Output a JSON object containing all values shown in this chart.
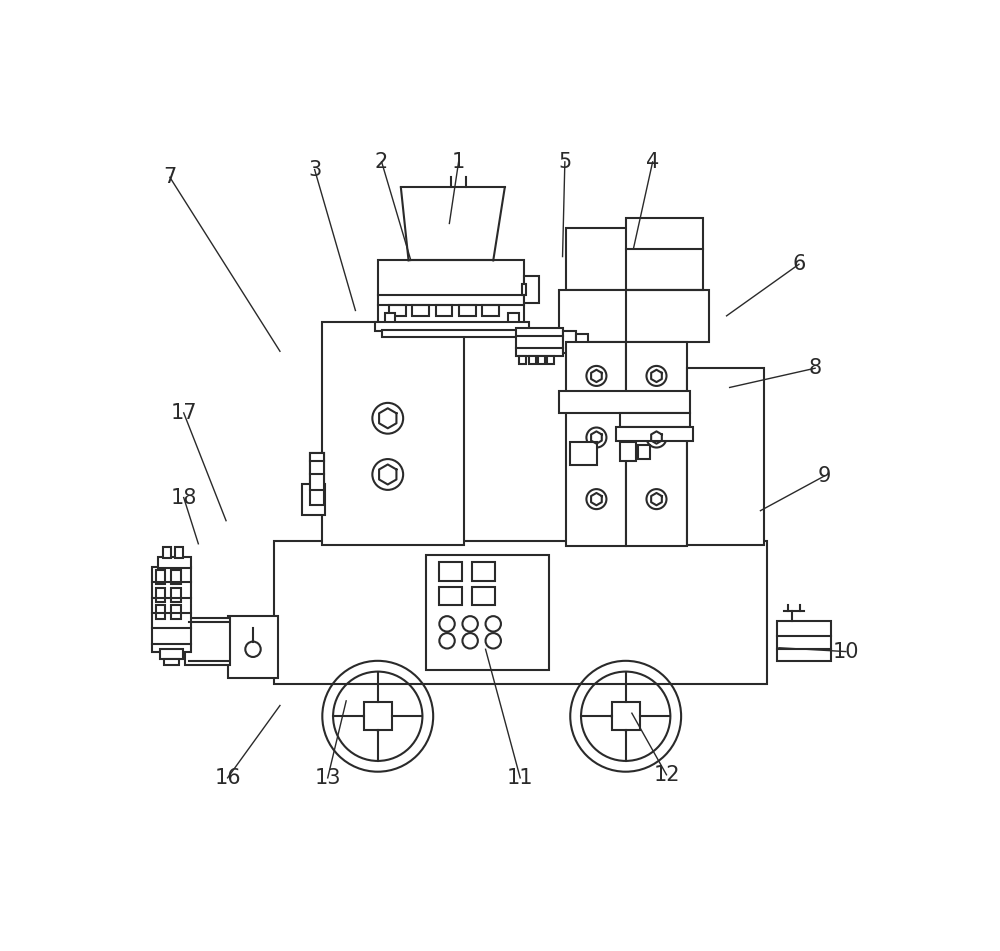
{
  "bg_color": "#ffffff",
  "lc": "#2a2a2a",
  "lw": 1.5,
  "lw_thin": 1.0,
  "annotations": [
    [
      430,
      62,
      418,
      142,
      "1"
    ],
    [
      330,
      62,
      368,
      190,
      "2"
    ],
    [
      243,
      72,
      296,
      255,
      "3"
    ],
    [
      682,
      62,
      657,
      175,
      "4"
    ],
    [
      568,
      62,
      565,
      185,
      "5"
    ],
    [
      872,
      195,
      778,
      262,
      "6"
    ],
    [
      55,
      82,
      198,
      308,
      "7"
    ],
    [
      893,
      330,
      782,
      355,
      "8"
    ],
    [
      905,
      470,
      822,
      515,
      "9"
    ],
    [
      933,
      698,
      846,
      693,
      "10"
    ],
    [
      510,
      862,
      465,
      695,
      "11"
    ],
    [
      700,
      858,
      655,
      778,
      "12"
    ],
    [
      260,
      862,
      284,
      762,
      "13"
    ],
    [
      130,
      862,
      198,
      768,
      "16"
    ],
    [
      73,
      388,
      128,
      528,
      "17"
    ],
    [
      73,
      498,
      92,
      558,
      "18"
    ]
  ]
}
